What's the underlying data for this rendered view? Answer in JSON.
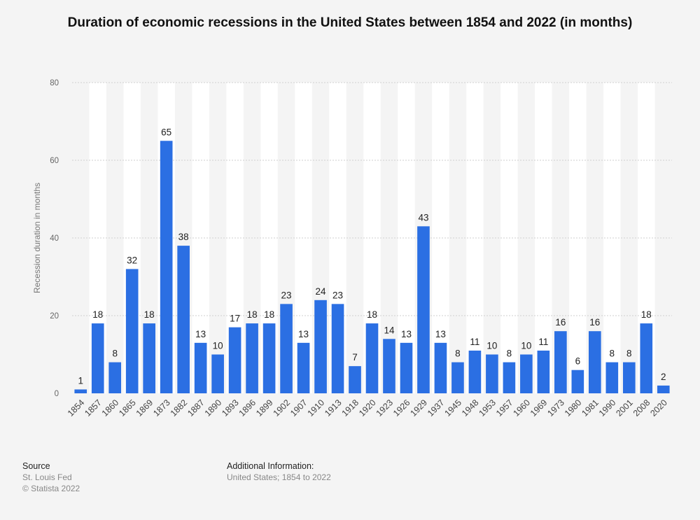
{
  "title": "Duration of economic recessions in the United States between 1854 and 2022 (in months)",
  "footer": {
    "source_label": "Source",
    "source_lines": [
      "St. Louis Fed",
      "© Statista 2022"
    ],
    "info_label": "Additional Information:",
    "info_text": "United States; 1854 to 2022"
  },
  "colors": {
    "bar": "#2b6fe3",
    "band": "#ffffff",
    "grid": "#cfcfcf",
    "background": "#f4f4f4"
  },
  "chart_data": {
    "type": "bar",
    "title": "Duration of economic recessions in the United States between 1854 and 2022 (in months)",
    "xlabel": "",
    "ylabel": "Recession duration in months",
    "ylim": [
      0,
      80
    ],
    "yticks": [
      0,
      20,
      40,
      60,
      80
    ],
    "grid": true,
    "categories": [
      "1854",
      "1857",
      "1860",
      "1865",
      "1869",
      "1873",
      "1882",
      "1887",
      "1890",
      "1893",
      "1896",
      "1899",
      "1902",
      "1907",
      "1910",
      "1913",
      "1918",
      "1920",
      "1923",
      "1926",
      "1929",
      "1937",
      "1945",
      "1948",
      "1953",
      "1957",
      "1960",
      "1969",
      "1973",
      "1980",
      "1981",
      "1990",
      "2001",
      "2008",
      "2020"
    ],
    "values": [
      1,
      18,
      8,
      32,
      18,
      65,
      38,
      13,
      10,
      17,
      18,
      18,
      23,
      13,
      24,
      23,
      7,
      18,
      14,
      13,
      43,
      13,
      8,
      11,
      10,
      8,
      10,
      11,
      16,
      6,
      16,
      8,
      8,
      18,
      2
    ]
  }
}
